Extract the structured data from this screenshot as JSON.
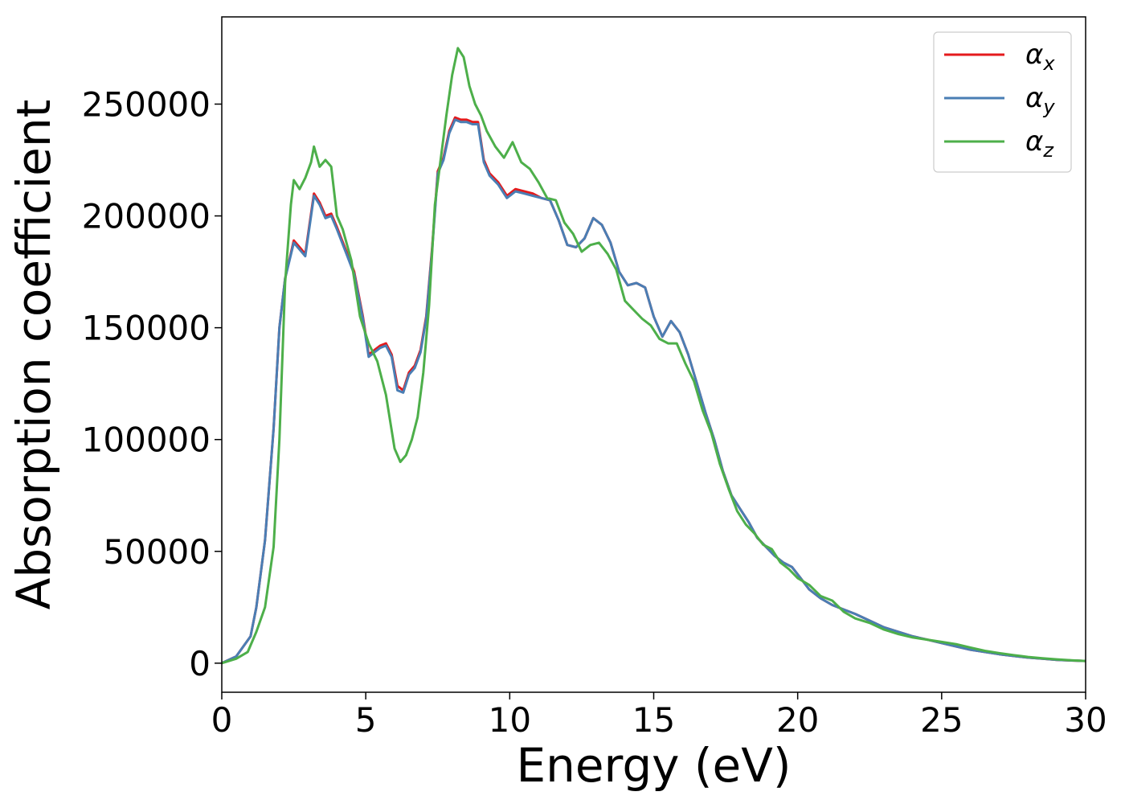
{
  "chart_data": {
    "type": "line",
    "xlabel": "Energy (eV)",
    "ylabel": "Absorption coefficient",
    "xlim": [
      0,
      30
    ],
    "ylim": [
      -13000,
      289000
    ],
    "xticks": [
      0,
      5,
      10,
      15,
      20,
      25,
      30
    ],
    "yticks": [
      0,
      50000,
      100000,
      150000,
      200000,
      250000
    ],
    "grid": false,
    "legend_position": "top-right",
    "series": [
      {
        "name": "α",
        "subscript": "x",
        "color": "#e41a1c",
        "x": [
          0,
          0.5,
          1.0,
          1.2,
          1.5,
          1.8,
          2.0,
          2.2,
          2.5,
          2.7,
          2.9,
          3.0,
          3.2,
          3.4,
          3.6,
          3.8,
          4.0,
          4.3,
          4.6,
          4.9,
          5.1,
          5.3,
          5.5,
          5.7,
          5.9,
          6.1,
          6.3,
          6.5,
          6.7,
          6.9,
          7.1,
          7.3,
          7.5,
          7.7,
          7.9,
          8.1,
          8.3,
          8.5,
          8.7,
          8.9,
          9.1,
          9.3,
          9.6,
          9.9,
          10.2,
          10.5,
          10.8,
          11.1,
          11.4,
          11.7,
          12.0,
          12.3,
          12.6,
          12.9,
          13.2,
          13.5,
          13.8,
          14.1,
          14.4,
          14.7,
          15.0,
          15.3,
          15.6,
          15.9,
          16.2,
          16.5,
          16.8,
          17.1,
          17.4,
          17.7,
          18.0,
          18.3,
          18.6,
          18.9,
          19.2,
          19.5,
          19.8,
          20.1,
          20.4,
          20.8,
          21.2,
          21.6,
          22.0,
          22.5,
          23.0,
          23.5,
          24.0,
          24.5,
          25.0,
          25.5,
          26.0,
          26.5,
          27.0,
          27.5,
          28.0,
          28.5,
          29.0,
          29.5,
          30.0
        ],
        "y": [
          0,
          3000,
          12000,
          25000,
          55000,
          105000,
          150000,
          172000,
          189000,
          186000,
          183000,
          192000,
          210000,
          206000,
          200000,
          201000,
          195000,
          185000,
          175000,
          155000,
          138000,
          140000,
          142000,
          143000,
          138000,
          124000,
          122000,
          130000,
          133000,
          140000,
          155000,
          185000,
          220000,
          226000,
          238000,
          244000,
          243000,
          243000,
          242000,
          242000,
          225000,
          219000,
          215000,
          209000,
          212000,
          211000,
          210000,
          208000,
          207000,
          198000,
          187000,
          186000,
          190000,
          199000,
          196000,
          188000,
          175000,
          169000,
          170000,
          168000,
          155000,
          146000,
          153000,
          148000,
          138000,
          125000,
          112000,
          100000,
          86000,
          75000,
          69000,
          63000,
          56000,
          52000,
          48000,
          45000,
          43000,
          38000,
          33000,
          29000,
          26000,
          24000,
          22000,
          19000,
          16000,
          14000,
          12000,
          10500,
          9000,
          7500,
          6000,
          5000,
          4000,
          3200,
          2500,
          2000,
          1500,
          1200,
          1000
        ]
      },
      {
        "name": "α",
        "subscript": "y",
        "color": "#4a7eb4",
        "x": [
          0,
          0.5,
          1.0,
          1.2,
          1.5,
          1.8,
          2.0,
          2.2,
          2.5,
          2.7,
          2.9,
          3.0,
          3.2,
          3.4,
          3.6,
          3.8,
          4.0,
          4.3,
          4.6,
          4.9,
          5.1,
          5.3,
          5.5,
          5.7,
          5.9,
          6.1,
          6.3,
          6.5,
          6.7,
          6.9,
          7.1,
          7.3,
          7.5,
          7.7,
          7.9,
          8.1,
          8.3,
          8.5,
          8.7,
          8.9,
          9.1,
          9.3,
          9.6,
          9.9,
          10.2,
          10.5,
          10.8,
          11.1,
          11.4,
          11.7,
          12.0,
          12.3,
          12.6,
          12.9,
          13.2,
          13.5,
          13.8,
          14.1,
          14.4,
          14.7,
          15.0,
          15.3,
          15.6,
          15.9,
          16.2,
          16.5,
          16.8,
          17.1,
          17.4,
          17.7,
          18.0,
          18.3,
          18.6,
          18.9,
          19.2,
          19.5,
          19.8,
          20.1,
          20.4,
          20.8,
          21.2,
          21.6,
          22.0,
          22.5,
          23.0,
          23.5,
          24.0,
          24.5,
          25.0,
          25.5,
          26.0,
          26.5,
          27.0,
          27.5,
          28.0,
          28.5,
          29.0,
          29.5,
          30.0
        ],
        "y": [
          0,
          3000,
          12000,
          25000,
          55000,
          105000,
          150000,
          172000,
          188000,
          185000,
          182000,
          191000,
          209000,
          205000,
          199000,
          200000,
          194000,
          184000,
          174000,
          154000,
          137000,
          139000,
          141000,
          142000,
          137000,
          122000,
          121000,
          129000,
          132000,
          139000,
          154000,
          184000,
          219000,
          225000,
          237000,
          243000,
          242000,
          242000,
          241000,
          241000,
          224000,
          218000,
          214000,
          208000,
          211000,
          210000,
          209000,
          208000,
          207000,
          198000,
          187000,
          186000,
          190000,
          199000,
          196000,
          188000,
          175000,
          169000,
          170000,
          168000,
          155000,
          146000,
          153000,
          148000,
          138000,
          125000,
          112000,
          100000,
          86000,
          75000,
          69000,
          63000,
          56000,
          52000,
          48000,
          45000,
          43000,
          38000,
          33000,
          29000,
          26000,
          24000,
          22000,
          19000,
          16000,
          14000,
          12000,
          10500,
          9000,
          7500,
          6000,
          5000,
          4000,
          3200,
          2500,
          2000,
          1500,
          1200,
          1000
        ]
      },
      {
        "name": "α",
        "subscript": "z",
        "color": "#4daf4a",
        "x": [
          0,
          0.5,
          0.9,
          1.2,
          1.5,
          1.8,
          2.0,
          2.2,
          2.4,
          2.5,
          2.7,
          2.9,
          3.1,
          3.2,
          3.4,
          3.6,
          3.8,
          4.0,
          4.2,
          4.5,
          4.8,
          5.1,
          5.4,
          5.7,
          6.0,
          6.2,
          6.4,
          6.6,
          6.8,
          7.0,
          7.2,
          7.4,
          7.6,
          7.8,
          8.0,
          8.2,
          8.4,
          8.6,
          8.8,
          9.0,
          9.2,
          9.5,
          9.8,
          10.1,
          10.4,
          10.7,
          11.0,
          11.3,
          11.6,
          11.9,
          12.2,
          12.5,
          12.8,
          13.1,
          13.4,
          13.7,
          14.0,
          14.3,
          14.6,
          14.9,
          15.2,
          15.5,
          15.8,
          16.1,
          16.4,
          16.7,
          17.0,
          17.3,
          17.6,
          17.9,
          18.2,
          18.5,
          18.8,
          19.1,
          19.4,
          19.7,
          20.0,
          20.4,
          20.8,
          21.2,
          21.6,
          22.0,
          22.5,
          23.0,
          23.5,
          24.0,
          24.5,
          25.0,
          25.5,
          26.0,
          26.5,
          27.0,
          27.5,
          28.0,
          28.5,
          29.0,
          29.5,
          30.0
        ],
        "y": [
          0,
          2000,
          5000,
          14000,
          25000,
          52000,
          100000,
          170000,
          205000,
          216000,
          212000,
          217000,
          224000,
          231000,
          222000,
          225000,
          222000,
          200000,
          194000,
          180000,
          155000,
          143000,
          135000,
          120000,
          96000,
          90000,
          93000,
          100000,
          110000,
          130000,
          160000,
          205000,
          225000,
          245000,
          263000,
          275000,
          271000,
          258000,
          250000,
          245000,
          238000,
          231000,
          226000,
          233000,
          224000,
          221000,
          215000,
          208000,
          207000,
          197000,
          192000,
          184000,
          187000,
          188000,
          183000,
          176000,
          162000,
          158000,
          154000,
          151000,
          145000,
          143000,
          143000,
          134000,
          126000,
          113000,
          103000,
          89000,
          78000,
          68000,
          62000,
          58000,
          53000,
          51000,
          45000,
          42000,
          38000,
          35000,
          30000,
          28000,
          23000,
          20000,
          18000,
          15000,
          13000,
          11500,
          10500,
          9500,
          8500,
          7000,
          5500,
          4500,
          3600,
          2800,
          2200,
          1700,
          1300,
          1000
        ]
      }
    ]
  }
}
